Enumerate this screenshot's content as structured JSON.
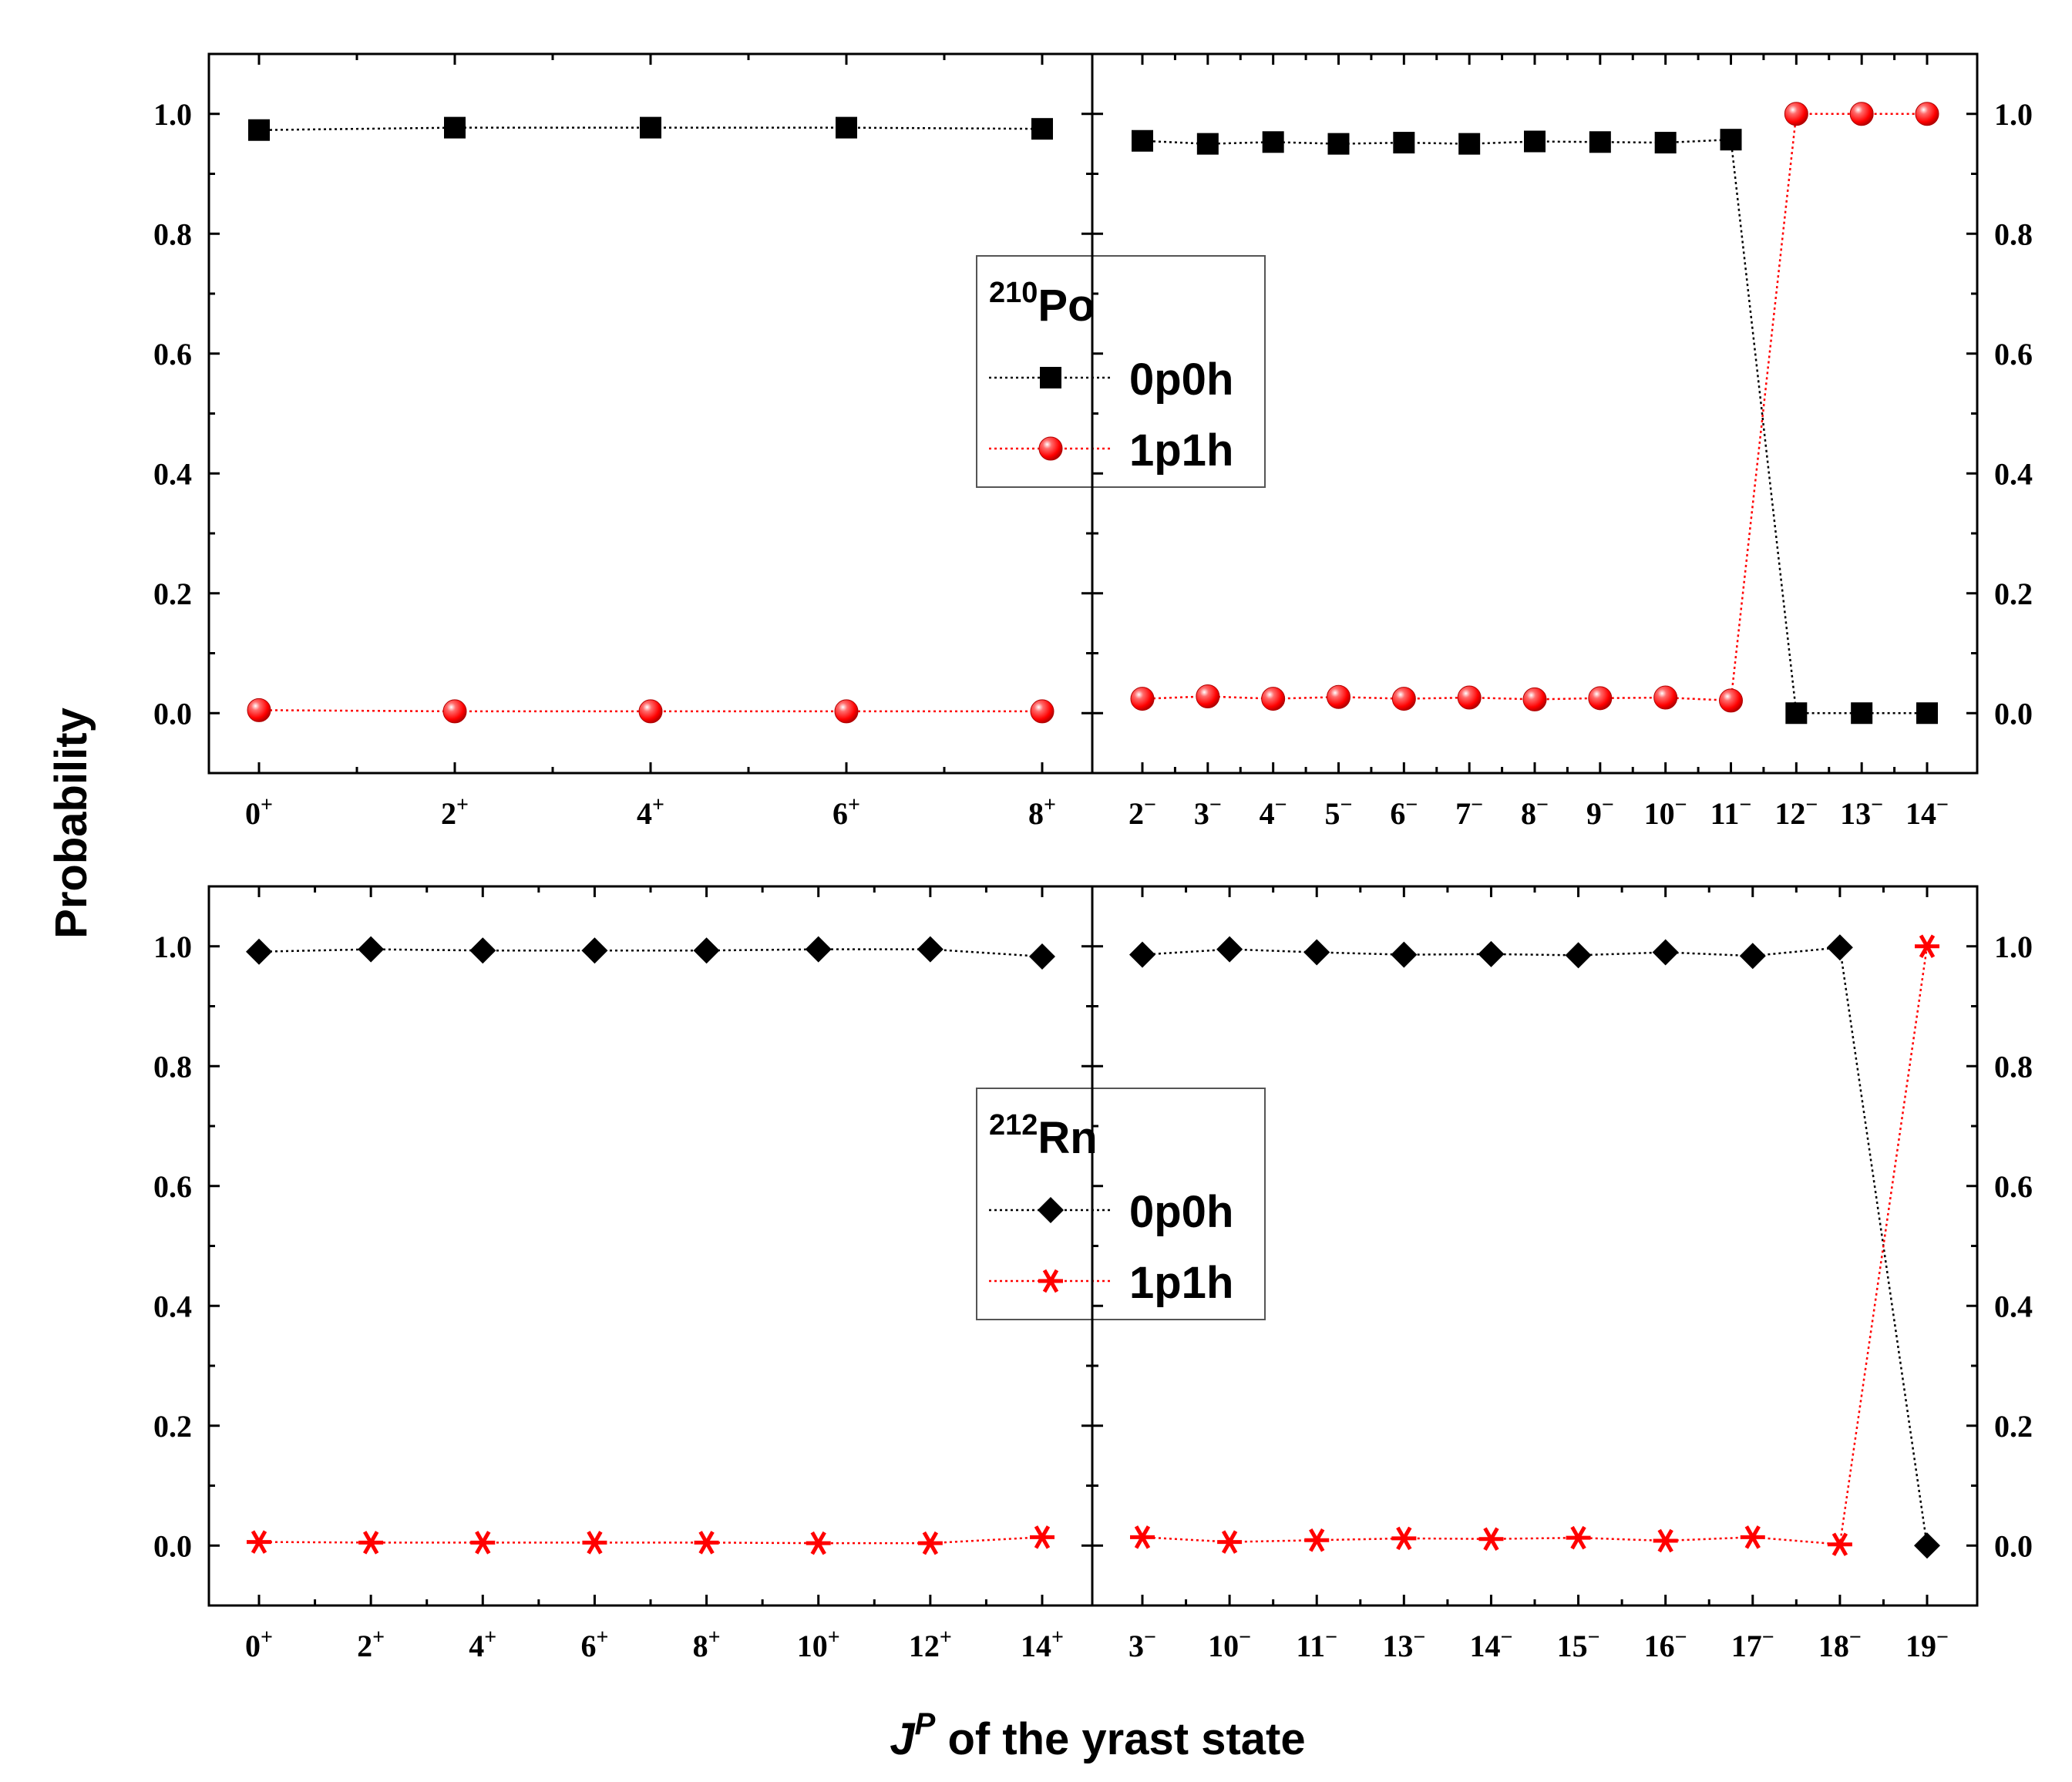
{
  "figure": {
    "ylabel": "Probability",
    "xlabel_j": "J",
    "xlabel_p": "P",
    "xlabel_rest": " of the yrast state"
  },
  "styles": {
    "color_0p0h": "#000000",
    "color_1p1h": "#ff0000",
    "line_style": "dotted"
  },
  "chart_data": [
    {
      "type": "line",
      "panel": "top-left",
      "categories": [
        "0+",
        "2+",
        "4+",
        "6+",
        "8+"
      ],
      "series": [
        {
          "name": "0p0h",
          "marker": "square",
          "values": [
            0.973,
            0.977,
            0.977,
            0.977,
            0.975
          ]
        },
        {
          "name": "1p1h",
          "marker": "sphere",
          "values": [
            0.005,
            0.003,
            0.003,
            0.003,
            0.003
          ]
        }
      ],
      "ylim": [
        -0.1,
        1.1
      ],
      "yticks": [
        "0.0",
        "0.2",
        "0.4",
        "0.6",
        "0.8",
        "1.0"
      ],
      "legend": {
        "nucleus_mass": "210",
        "nucleus_symbol": "Po",
        "placement": "top-right",
        "entries": [
          "0p0h",
          "1p1h"
        ]
      }
    },
    {
      "type": "line",
      "panel": "top-right",
      "categories": [
        "2-",
        "3-",
        "4-",
        "5-",
        "6-",
        "7-",
        "8-",
        "9-",
        "10-",
        "11-",
        "12-",
        "13-",
        "14-"
      ],
      "series": [
        {
          "name": "0p0h",
          "marker": "square",
          "values": [
            0.955,
            0.95,
            0.953,
            0.95,
            0.952,
            0.95,
            0.954,
            0.953,
            0.952,
            0.957,
            0.0,
            0.0,
            0.0
          ]
        },
        {
          "name": "1p1h",
          "marker": "sphere",
          "values": [
            0.024,
            0.028,
            0.024,
            0.027,
            0.024,
            0.026,
            0.023,
            0.025,
            0.026,
            0.021,
            1.0,
            1.0,
            1.0
          ]
        }
      ],
      "ylim": [
        -0.1,
        1.1
      ],
      "yticks": [
        "0.0",
        "0.2",
        "0.4",
        "0.6",
        "0.8",
        "1.0"
      ]
    },
    {
      "type": "line",
      "panel": "bottom-left",
      "categories": [
        "0+",
        "2+",
        "4+",
        "6+",
        "8+",
        "10+",
        "12+",
        "14+"
      ],
      "series": [
        {
          "name": "0p0h",
          "marker": "diamond",
          "values": [
            0.991,
            0.995,
            0.993,
            0.993,
            0.993,
            0.995,
            0.995,
            0.983
          ]
        },
        {
          "name": "1p1h",
          "marker": "asterisk",
          "values": [
            0.006,
            0.005,
            0.005,
            0.005,
            0.005,
            0.004,
            0.004,
            0.014
          ]
        }
      ],
      "ylim": [
        -0.1,
        1.1
      ],
      "yticks": [
        "0.0",
        "0.2",
        "0.4",
        "0.6",
        "0.8",
        "1.0"
      ],
      "legend": {
        "nucleus_mass": "212",
        "nucleus_symbol": "Rn",
        "placement": "top-right",
        "entries": [
          "0p0h",
          "1p1h"
        ]
      }
    },
    {
      "type": "line",
      "panel": "bottom-right",
      "categories": [
        "3-",
        "10-",
        "11-",
        "13-",
        "14-",
        "15-",
        "16-",
        "17-",
        "18-",
        "19-"
      ],
      "series": [
        {
          "name": "0p0h",
          "marker": "diamond",
          "values": [
            0.986,
            0.995,
            0.99,
            0.986,
            0.987,
            0.985,
            0.99,
            0.984,
            0.998,
            0.0
          ]
        },
        {
          "name": "1p1h",
          "marker": "asterisk",
          "values": [
            0.014,
            0.006,
            0.009,
            0.012,
            0.011,
            0.013,
            0.008,
            0.014,
            0.002,
            1.0
          ]
        }
      ],
      "ylim": [
        -0.1,
        1.1
      ],
      "yticks": [
        "0.0",
        "0.2",
        "0.4",
        "0.6",
        "0.8",
        "1.0"
      ]
    }
  ]
}
